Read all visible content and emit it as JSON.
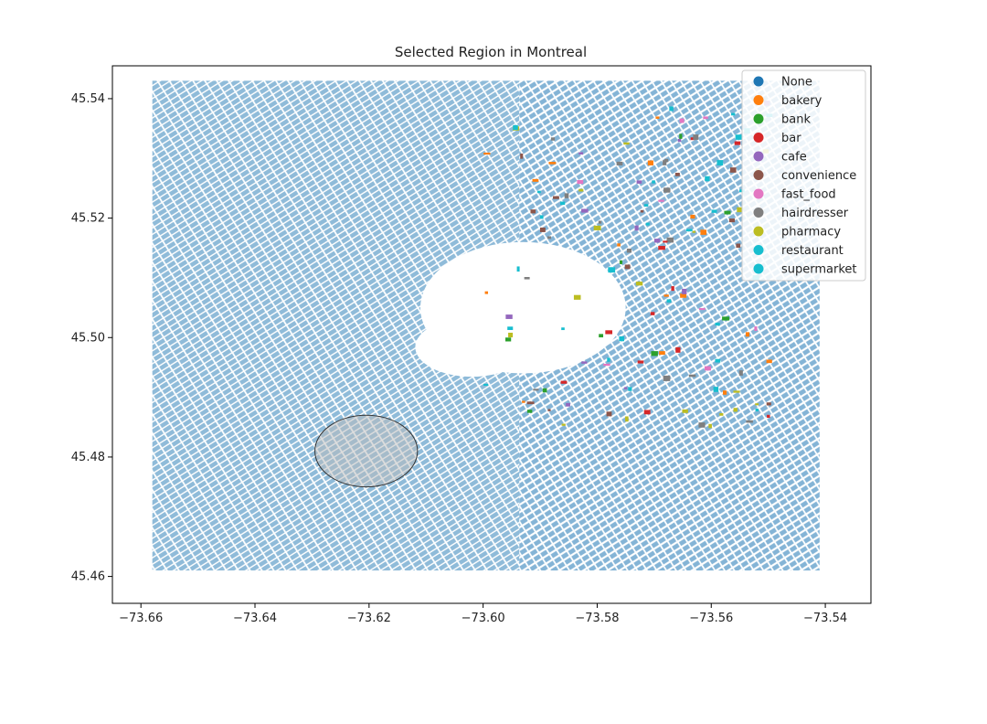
{
  "chart_data": {
    "type": "scatter",
    "title": "Selected Region in Montreal",
    "xlabel": "",
    "ylabel": "",
    "xlim": [
      -73.665,
      -73.532
    ],
    "ylim": [
      45.4555,
      45.5455
    ],
    "x_ticks": [
      -73.66,
      -73.64,
      -73.62,
      -73.6,
      -73.58,
      -73.56,
      -73.54
    ],
    "x_tick_labels": [
      "−73.66",
      "−73.64",
      "−73.62",
      "−73.60",
      "−73.58",
      "−73.56",
      "−73.54"
    ],
    "y_ticks": [
      45.46,
      45.48,
      45.5,
      45.52,
      45.54
    ],
    "y_tick_labels": [
      "45.46",
      "45.48",
      "45.50",
      "45.52",
      "45.54"
    ],
    "grid": false,
    "legend_placement": "top-right",
    "legend": [
      {
        "label": "None",
        "color": "#1f77b4"
      },
      {
        "label": "bakery",
        "color": "#ff7f0e"
      },
      {
        "label": "bank",
        "color": "#2ca02c"
      },
      {
        "label": "bar",
        "color": "#d62728"
      },
      {
        "label": "cafe",
        "color": "#9467bd"
      },
      {
        "label": "convenience",
        "color": "#8c564b"
      },
      {
        "label": "fast_food",
        "color": "#e377c2"
      },
      {
        "label": "hairdresser",
        "color": "#7f7f7f"
      },
      {
        "label": "pharmacy",
        "color": "#bcbd22"
      },
      {
        "label": "restaurant",
        "color": "#17becf"
      },
      {
        "label": "supermarket",
        "color": "#17becf"
      }
    ],
    "selected_region": {
      "shape": "ellipse",
      "center": [
        -73.6205,
        45.481
      ],
      "radius_x": 0.009,
      "radius_y": 0.006,
      "fill": "#bbbbbb",
      "fill_opacity": 0.5,
      "stroke": "#333333"
    },
    "footprint_extent": {
      "x": [
        -73.658,
        -73.541
      ],
      "y": [
        45.461,
        45.543
      ]
    },
    "park_area": {
      "center": [
        -73.593,
        45.505
      ],
      "radius_x": 0.018,
      "radius_y": 0.011
    }
  }
}
